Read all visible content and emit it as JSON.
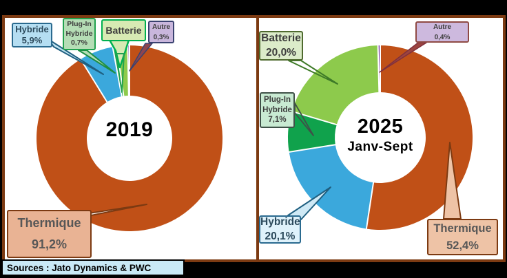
{
  "background_color": "#000000",
  "panel_border_color": "#7c3a12",
  "footer": {
    "sources_label": "Sources : Jato Dynamics & PWC"
  },
  "left_chart": {
    "center_year": "2019",
    "callouts": {
      "hybride": {
        "line1": "Hybride",
        "line2": "5,9%"
      },
      "plugin": {
        "line1": "Plug-In",
        "line2": "Hybride",
        "line3": "0,7%"
      },
      "batterie": {
        "line1": "Batterie"
      },
      "autre": {
        "line1": "Autre",
        "line2": "0,3%"
      },
      "thermique": {
        "line1": "Thermique",
        "line2": "91,2%"
      }
    }
  },
  "right_chart": {
    "center_year": "2025",
    "center_period": "Janv-Sept",
    "callouts": {
      "batterie": {
        "line1": "Batterie",
        "line2": "20,0%"
      },
      "plugin": {
        "line1": "Plug-In",
        "line2": "Hybride",
        "line3": "7,1%"
      },
      "autre": {
        "line1": "Autre",
        "line2": "0,4%"
      },
      "hybride": {
        "line1": "Hybride",
        "line2": "20,1%"
      },
      "thermique": {
        "line1": "Thermique",
        "line2": "52,4%"
      }
    }
  },
  "chart_data": [
    {
      "type": "pie",
      "title": "2019",
      "donut": true,
      "start": "12-oclock-clockwise",
      "labels": [
        "Thermique",
        "Hybride",
        "Plug-In Hybride",
        "Batterie",
        "Autre"
      ],
      "values": [
        91.2,
        5.9,
        0.7,
        1.9,
        0.3
      ],
      "displayed_percent_labels": [
        "91,2%",
        "5,9%",
        "0,7%",
        "",
        "0,3%"
      ],
      "colors": [
        "#c05017",
        "#3ba8dc",
        "#10a24c",
        "#8dca4c",
        "#7030a0"
      ]
    },
    {
      "type": "pie",
      "title": "2025 Janv-Sept",
      "donut": true,
      "start": "12-oclock-clockwise",
      "labels": [
        "Thermique",
        "Hybride",
        "Plug-In Hybride",
        "Batterie",
        "Autre"
      ],
      "values": [
        52.4,
        20.1,
        7.1,
        20.0,
        0.4
      ],
      "displayed_percent_labels": [
        "52,4%",
        "20,1%",
        "7,1%",
        "20,0%",
        "0,4%"
      ],
      "colors": [
        "#c05017",
        "#3ba8dc",
        "#10a24c",
        "#8dca4c",
        "#7030a0"
      ]
    }
  ]
}
